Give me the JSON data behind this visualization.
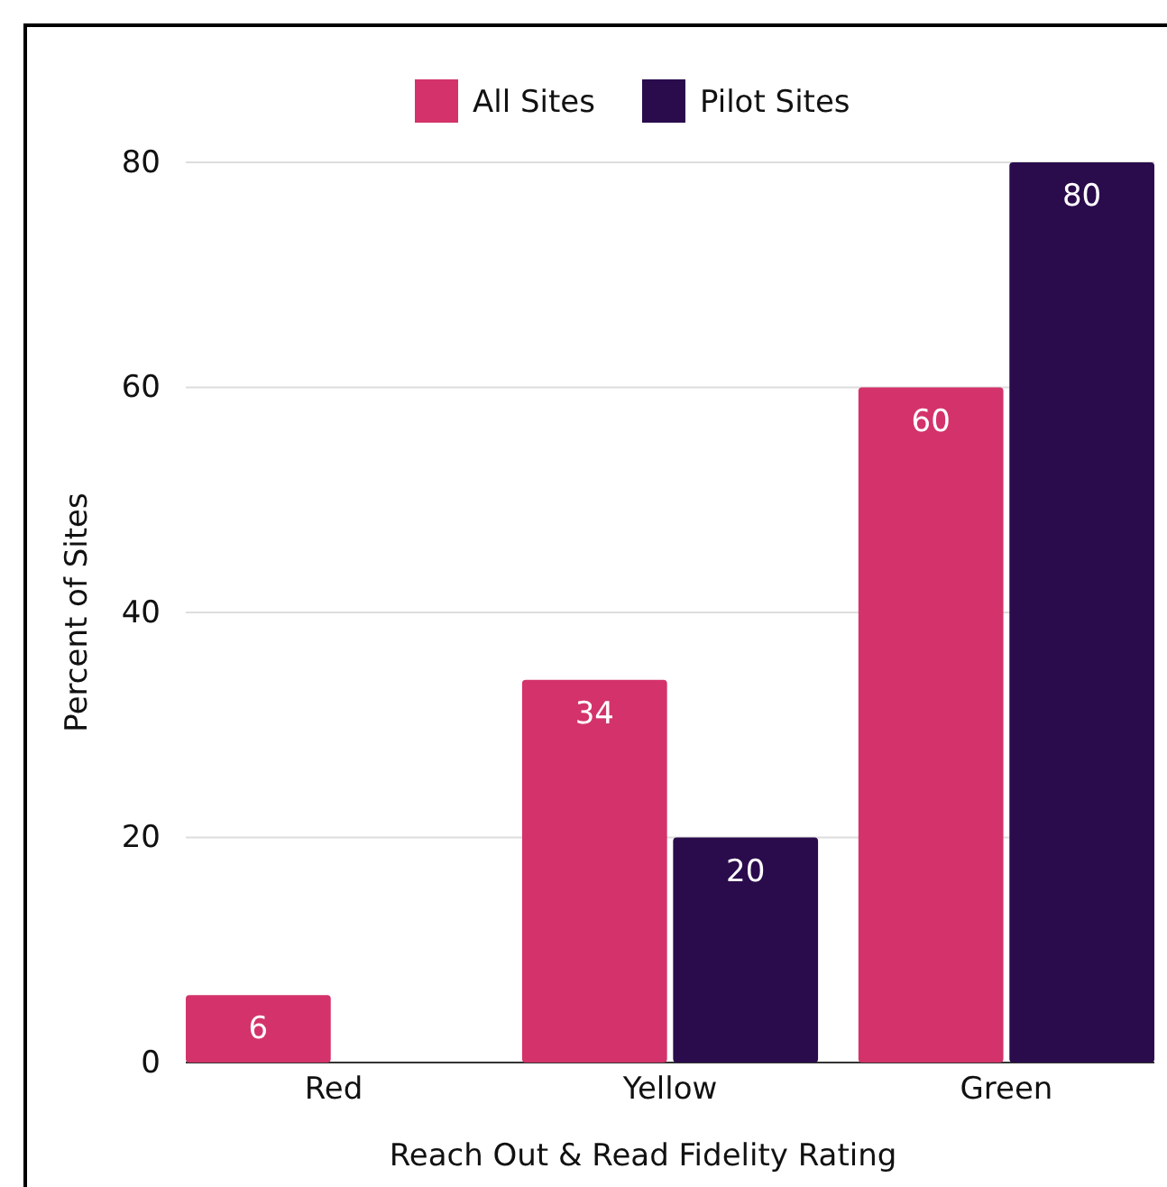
{
  "chart_data": {
    "type": "bar",
    "xlabel": "Reach Out & Read Fidelity Rating",
    "ylabel": "Percent of Sites",
    "categories": [
      "Red",
      "Yellow",
      "Green"
    ],
    "series": [
      {
        "name": "All Sites",
        "color": "#d3336a",
        "values": [
          6,
          34,
          60
        ],
        "value_labels": [
          "6",
          "34",
          "60"
        ]
      },
      {
        "name": "Pilot Sites",
        "color": "#2a0b4c",
        "values": [
          0,
          20,
          80
        ],
        "value_labels": [
          null,
          "20",
          "80"
        ]
      }
    ],
    "ylim": [
      0,
      80
    ],
    "yticks": [
      0,
      20,
      40,
      60,
      80
    ],
    "grid": "y",
    "legend": "top"
  }
}
